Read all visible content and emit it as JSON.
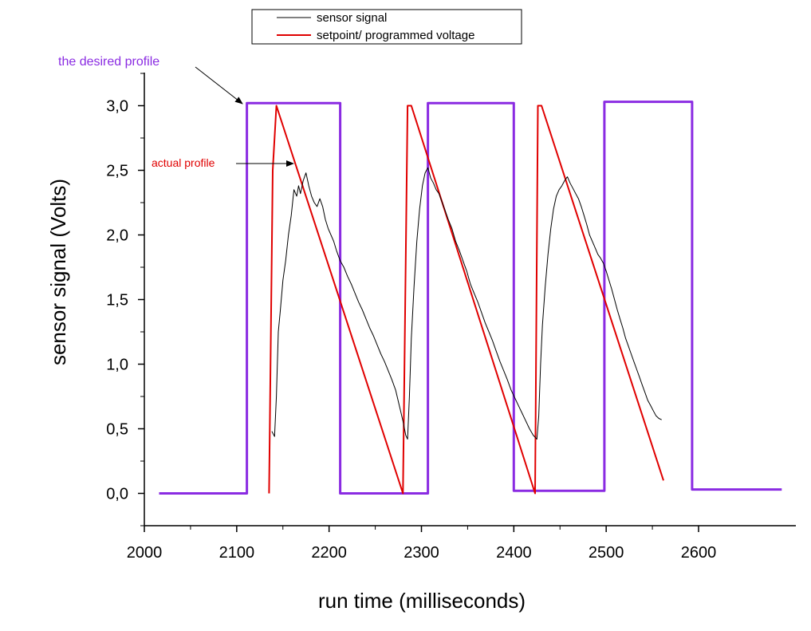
{
  "chart_data": {
    "type": "line",
    "xlabel": "run time (milliseconds)",
    "ylabel": "sensor signal (Volts)",
    "xlim": [
      2000,
      2630
    ],
    "ylim": [
      -0.25,
      3.25
    ],
    "xticks": [
      2000,
      2100,
      2200,
      2300,
      2400,
      2500,
      2600
    ],
    "xtick_labels": [
      "2000",
      "2100",
      "2200",
      "2300",
      "2400",
      "2500",
      "2600"
    ],
    "yticks": [
      0,
      0.5,
      1,
      1.5,
      2,
      2.5,
      3
    ],
    "ytick_labels": [
      "0,0",
      "0,5",
      "1,0",
      "1,5",
      "2,0",
      "2,5",
      "3,0"
    ],
    "legend": {
      "position": "top",
      "entries": [
        {
          "label": "sensor signal",
          "color": "#000000"
        },
        {
          "label": "setpoint/ programmed voltage",
          "color": "#e00000"
        }
      ]
    },
    "series": [
      {
        "name": "the desired profile",
        "color": "#8a2be2",
        "x": [
          2016,
          2111,
          2111,
          2212,
          2212,
          2307,
          2307,
          2400,
          2400,
          2498,
          2498,
          2593,
          2593,
          2690
        ],
        "y": [
          0.0,
          0.0,
          3.02,
          3.02,
          0.0,
          0.0,
          3.02,
          3.02,
          0.02,
          0.02,
          3.03,
          3.03,
          0.03,
          0.03
        ]
      },
      {
        "name": "setpoint/ programmed voltage",
        "color": "#e00000",
        "x": [
          2135,
          2139,
          2143,
          2280,
          2280,
          2285,
          2289,
          2423,
          2423,
          2426,
          2430,
          2562
        ],
        "y": [
          0.0,
          2.5,
          3.0,
          0.0,
          0.0,
          3.0,
          3.0,
          0.0,
          0.0,
          3.0,
          3.0,
          0.1
        ]
      },
      {
        "name": "sensor signal",
        "color": "#000000",
        "x": [
          2138,
          2141,
          2143,
          2145,
          2147,
          2150,
          2153,
          2156,
          2159,
          2162,
          2165,
          2167,
          2169,
          2172,
          2175,
          2178,
          2181,
          2184,
          2187,
          2190,
          2193,
          2196,
          2199,
          2202,
          2205,
          2208,
          2212,
          2216,
          2220,
          2224,
          2228,
          2232,
          2236,
          2240,
          2244,
          2248,
          2252,
          2256,
          2260,
          2264,
          2268,
          2272,
          2276,
          2280,
          2283,
          2285,
          2287,
          2289,
          2292,
          2295,
          2298,
          2301,
          2304,
          2307,
          2310,
          2313,
          2316,
          2319,
          2322,
          2325,
          2329,
          2333,
          2337,
          2341,
          2345,
          2349,
          2353,
          2357,
          2361,
          2365,
          2369,
          2373,
          2377,
          2381,
          2385,
          2389,
          2393,
          2397,
          2401,
          2405,
          2409,
          2413,
          2417,
          2421,
          2425,
          2427,
          2429,
          2431,
          2434,
          2437,
          2440,
          2443,
          2446,
          2449,
          2452,
          2455,
          2458,
          2461,
          2464,
          2467,
          2470,
          2473,
          2476,
          2479,
          2482,
          2485,
          2488,
          2491,
          2494,
          2497,
          2500,
          2503,
          2506,
          2509,
          2512,
          2515,
          2518,
          2521,
          2524,
          2527,
          2530,
          2533,
          2536,
          2539,
          2542,
          2545,
          2548,
          2551,
          2554,
          2557,
          2560
        ],
        "y": [
          0.48,
          0.44,
          0.75,
          1.25,
          1.4,
          1.65,
          1.8,
          2.0,
          2.15,
          2.35,
          2.3,
          2.38,
          2.32,
          2.42,
          2.48,
          2.38,
          2.3,
          2.25,
          2.22,
          2.28,
          2.22,
          2.12,
          2.05,
          2.0,
          1.95,
          1.88,
          1.8,
          1.75,
          1.68,
          1.62,
          1.55,
          1.48,
          1.42,
          1.35,
          1.28,
          1.22,
          1.15,
          1.08,
          1.02,
          0.95,
          0.88,
          0.8,
          0.68,
          0.56,
          0.45,
          0.42,
          0.75,
          1.2,
          1.6,
          1.95,
          2.2,
          2.38,
          2.48,
          2.52,
          2.44,
          2.4,
          2.35,
          2.32,
          2.26,
          2.2,
          2.12,
          2.05,
          1.95,
          1.88,
          1.8,
          1.72,
          1.62,
          1.55,
          1.48,
          1.4,
          1.32,
          1.25,
          1.18,
          1.1,
          1.02,
          0.95,
          0.88,
          0.8,
          0.74,
          0.68,
          0.62,
          0.56,
          0.5,
          0.45,
          0.42,
          0.6,
          1.0,
          1.3,
          1.6,
          1.85,
          2.05,
          2.2,
          2.3,
          2.35,
          2.38,
          2.42,
          2.45,
          2.4,
          2.36,
          2.32,
          2.28,
          2.22,
          2.15,
          2.08,
          2.0,
          1.95,
          1.9,
          1.85,
          1.82,
          1.78,
          1.72,
          1.65,
          1.58,
          1.5,
          1.42,
          1.35,
          1.28,
          1.2,
          1.14,
          1.08,
          1.02,
          0.96,
          0.9,
          0.84,
          0.78,
          0.72,
          0.68,
          0.64,
          0.6,
          0.58,
          0.57
        ]
      }
    ],
    "annotations": [
      {
        "text": "the desired profile",
        "color": "#8a2be2",
        "points_to": {
          "x": 2111,
          "y": 3.02
        }
      },
      {
        "text": "actual profile",
        "color": "#e00000",
        "points_to": {
          "x": 2170,
          "y": 2.55
        }
      }
    ]
  }
}
